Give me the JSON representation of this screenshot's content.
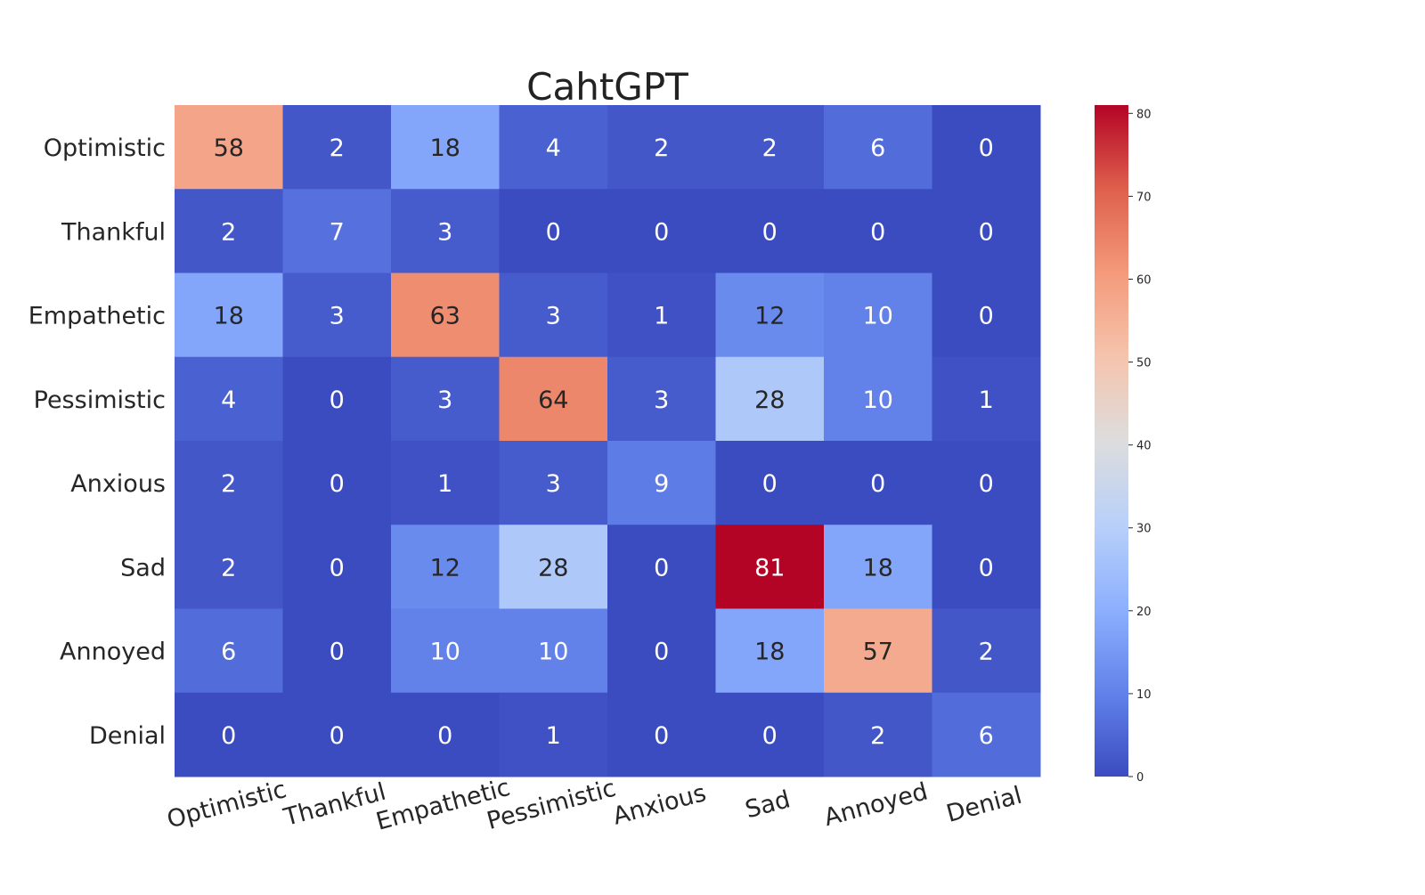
{
  "chart_data": {
    "type": "heatmap",
    "title": "CahtGPT",
    "xlabel": "",
    "ylabel": "",
    "x_categories": [
      "Optimistic",
      "Thankful",
      "Empathetic",
      "Pessimistic",
      "Anxious",
      "Sad",
      "Annoyed",
      "Denial"
    ],
    "y_categories": [
      "Optimistic",
      "Thankful",
      "Empathetic",
      "Pessimistic",
      "Anxious",
      "Sad",
      "Annoyed",
      "Denial"
    ],
    "values": [
      [
        58,
        2,
        18,
        4,
        2,
        2,
        6,
        0
      ],
      [
        2,
        7,
        3,
        0,
        0,
        0,
        0,
        0
      ],
      [
        18,
        3,
        63,
        3,
        1,
        12,
        10,
        0
      ],
      [
        4,
        0,
        3,
        64,
        3,
        28,
        10,
        1
      ],
      [
        2,
        0,
        1,
        3,
        9,
        0,
        0,
        0
      ],
      [
        2,
        0,
        12,
        28,
        0,
        81,
        18,
        0
      ],
      [
        6,
        0,
        10,
        10,
        0,
        18,
        57,
        2
      ],
      [
        0,
        0,
        0,
        1,
        0,
        0,
        2,
        6
      ]
    ],
    "colormap": "coolwarm",
    "annotated": true,
    "colorbar": {
      "range": [
        0,
        81
      ],
      "ticks": [
        0,
        10,
        20,
        30,
        40,
        50,
        60,
        70,
        80
      ]
    },
    "colors": {
      "low": "#3b4cc0",
      "mid": "#dddddd",
      "high": "#b40426"
    }
  }
}
